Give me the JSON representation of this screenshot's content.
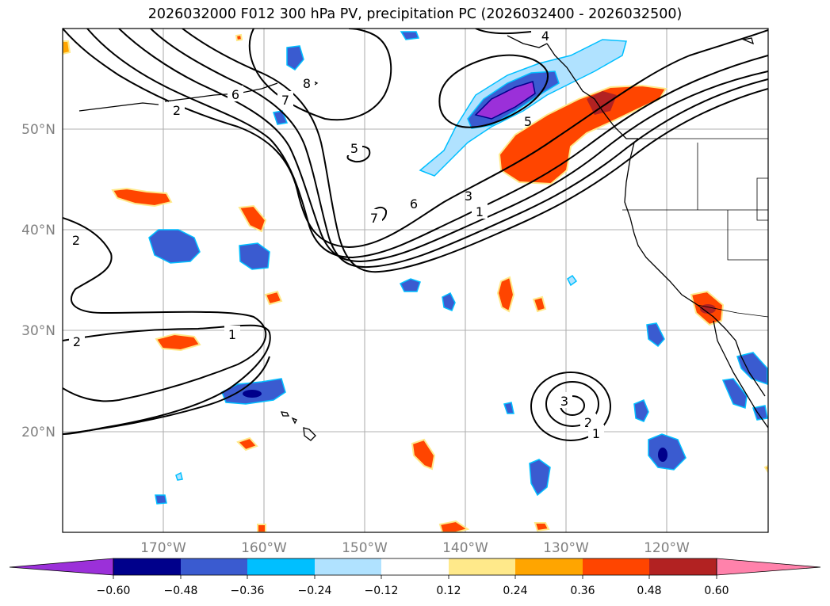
{
  "title": "2026032000 F012 300 hPa PV, precipitation PC (2026032400 - 2026032500)",
  "map": {
    "lon_range": [
      -180,
      -110
    ],
    "lat_range": [
      10,
      60
    ],
    "gridlines": true,
    "lon_labels": [
      "170°W",
      "160°W",
      "150°W",
      "140°W",
      "130°W",
      "120°W"
    ],
    "lat_labels": [
      "50°N",
      "40°N",
      "30°N",
      "20°N"
    ],
    "contour_labels": [
      "2",
      "6",
      "7",
      "8",
      "4",
      "5",
      "5",
      "7",
      "6",
      "3",
      "1",
      "2",
      "2",
      "1",
      "3",
      "2",
      "1"
    ]
  },
  "colorbar": {
    "ticks": [
      "−0.60",
      "−0.48",
      "−0.36",
      "−0.24",
      "−0.12",
      "0.12",
      "0.24",
      "0.36",
      "0.48",
      "0.60"
    ],
    "colors": [
      "#9b30d9",
      "#00008b",
      "#3a5bd0",
      "#00bfff",
      "#b0e2ff",
      "#ffffff",
      "#ffe98a",
      "#ffa500",
      "#ff4500",
      "#b22222",
      "#ff82ab"
    ]
  }
}
